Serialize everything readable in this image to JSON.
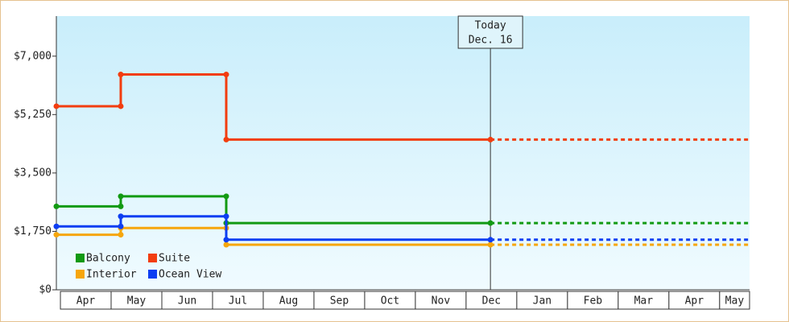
{
  "chart_data": {
    "type": "step-line",
    "categories": [
      "Apr",
      "May",
      "Jun",
      "Jul",
      "Aug",
      "Sep",
      "Oct",
      "Nov",
      "Dec",
      "Jan",
      "Feb",
      "Mar",
      "Apr",
      "May"
    ],
    "xlim": [
      -0.08,
      13.59
    ],
    "ylim": [
      0,
      8200
    ],
    "yticks": [
      {
        "value": 0,
        "label": "$0"
      },
      {
        "value": 1750,
        "label": "$1,750"
      },
      {
        "value": 3500,
        "label": "$3,500"
      },
      {
        "value": 5250,
        "label": "$5,250"
      },
      {
        "value": 7000,
        "label": "$7,000"
      }
    ],
    "series": [
      {
        "name": "Balcony",
        "color": "#129a12",
        "x": [
          -0.08,
          1.19,
          1.19,
          3.27,
          3.27,
          8.48
        ],
        "values": [
          2500,
          2500,
          2800,
          2800,
          2000,
          2000
        ]
      },
      {
        "name": "Suite",
        "color": "#f23d0f",
        "x": [
          -0.08,
          1.19,
          1.19,
          3.27,
          3.27,
          8.48
        ],
        "values": [
          5500,
          5500,
          6450,
          6450,
          4500,
          4500
        ]
      },
      {
        "name": "Interior",
        "color": "#f6a60c",
        "x": [
          -0.08,
          1.19,
          1.19,
          3.27,
          3.27,
          8.48
        ],
        "values": [
          1650,
          1650,
          1850,
          1850,
          1350,
          1350
        ]
      },
      {
        "name": "Ocean View",
        "color": "#0d3ef2",
        "x": [
          -0.08,
          1.19,
          1.19,
          3.27,
          3.27,
          8.48
        ],
        "values": [
          1900,
          1900,
          2200,
          2200,
          1500,
          1500
        ]
      }
    ],
    "annotation": {
      "text": [
        "Today",
        "Dec. 16"
      ],
      "x": 8.48
    },
    "legend": "bottom-left"
  }
}
